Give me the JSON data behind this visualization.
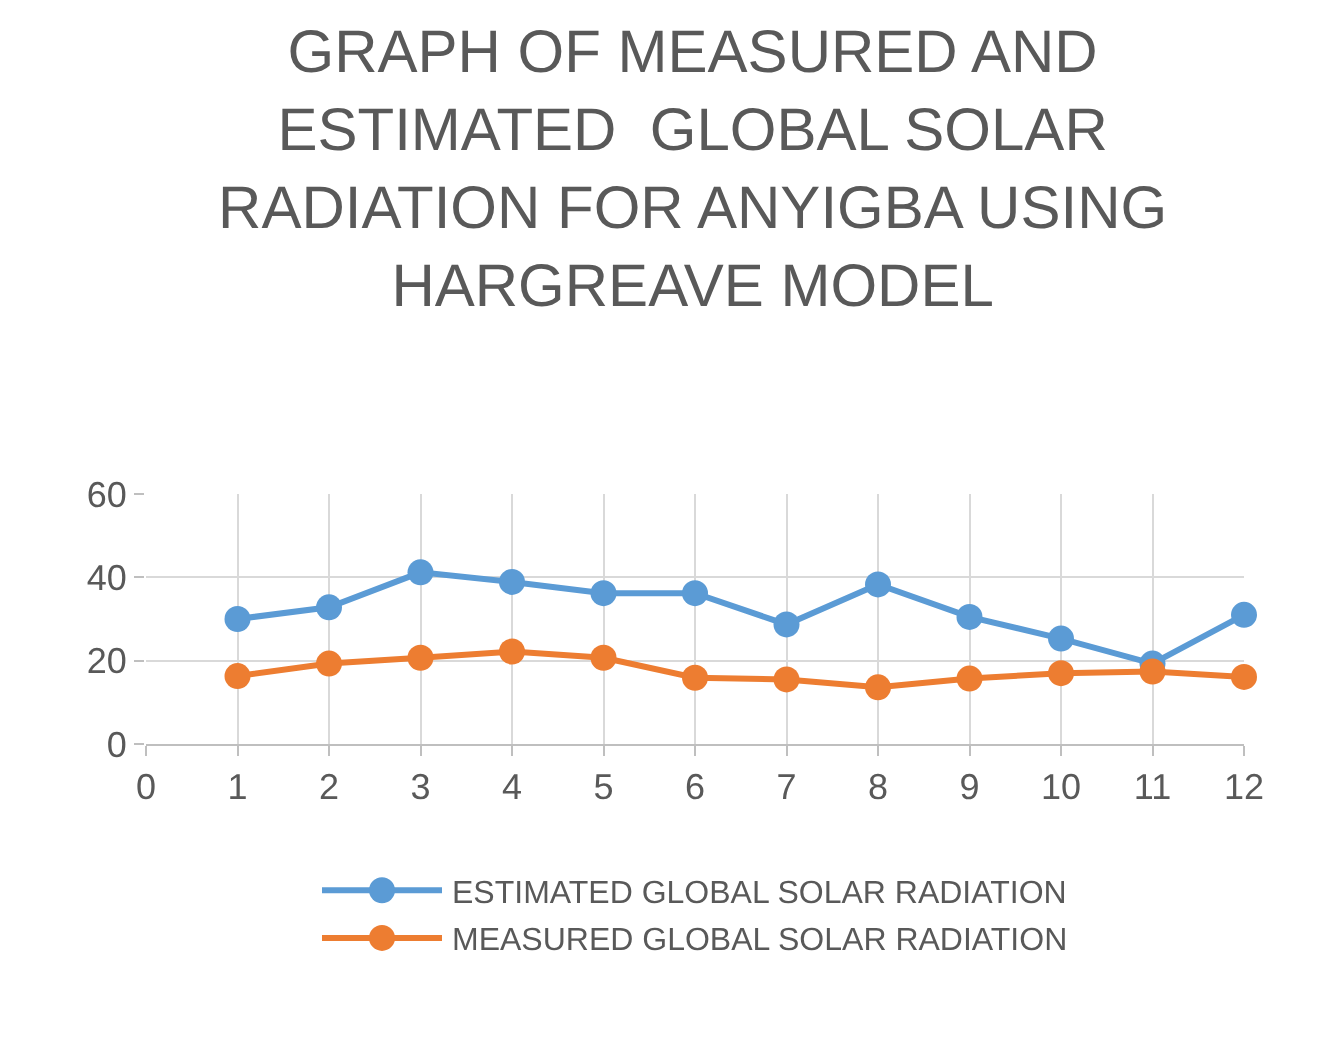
{
  "chart_data": {
    "type": "line",
    "title": "GRAPH OF MEASURED AND\nESTIMATED  GLOBAL SOLAR\nRADIATION FOR ANYIGBA USING\nHARGREAVE MODEL",
    "x": [
      1,
      2,
      3,
      4,
      5,
      6,
      7,
      8,
      9,
      10,
      11,
      12
    ],
    "series": [
      {
        "name": "ESTIMATED GLOBAL SOLAR RADIATION",
        "color": "#5b9bd5",
        "values": [
          30,
          32.8,
          41.2,
          38.9,
          36.2,
          36.2,
          28.7,
          38.3,
          30.5,
          25.3,
          19.3,
          31
        ]
      },
      {
        "name": "MEASURED GLOBAL SOLAR RADIATION",
        "color": "#ed7d31",
        "values": [
          16.3,
          19.3,
          20.7,
          22.2,
          20.7,
          15.9,
          15.5,
          13.6,
          15.7,
          17,
          17.4,
          16.1
        ]
      }
    ],
    "xlim": [
      0,
      12
    ],
    "xticks": [
      0,
      1,
      2,
      3,
      4,
      5,
      6,
      7,
      8,
      9,
      10,
      11,
      12
    ],
    "ylim": [
      0,
      60
    ],
    "yticks": [
      0,
      20,
      40,
      60
    ],
    "grid": true,
    "legend": "bottom",
    "marker": "circle",
    "line_style": "solid"
  }
}
